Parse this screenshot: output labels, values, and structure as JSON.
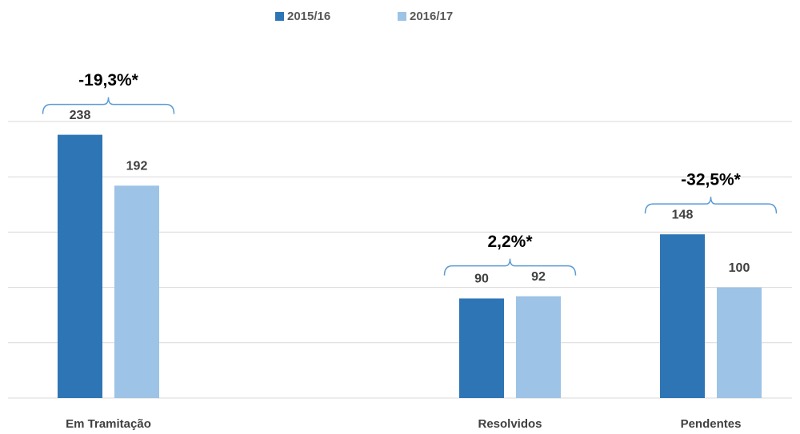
{
  "chart_data": {
    "type": "bar",
    "categories": [
      "Em Tramitação",
      null,
      "Resolvidos",
      "Pendentes"
    ],
    "series": [
      {
        "name": "2015/16",
        "color": "#2e75b6",
        "values": [
          238,
          null,
          90,
          148
        ]
      },
      {
        "name": "2016/17",
        "color": "#9dc3e6",
        "values": [
          192,
          null,
          92,
          100
        ]
      }
    ],
    "group_labels": [
      "-19,3%*",
      null,
      "2,2%*",
      "-32,5%*"
    ],
    "ylim": [
      0,
      250
    ],
    "yticks": [
      0,
      50,
      100,
      150,
      200,
      250
    ],
    "grid": true,
    "legend": "top"
  }
}
